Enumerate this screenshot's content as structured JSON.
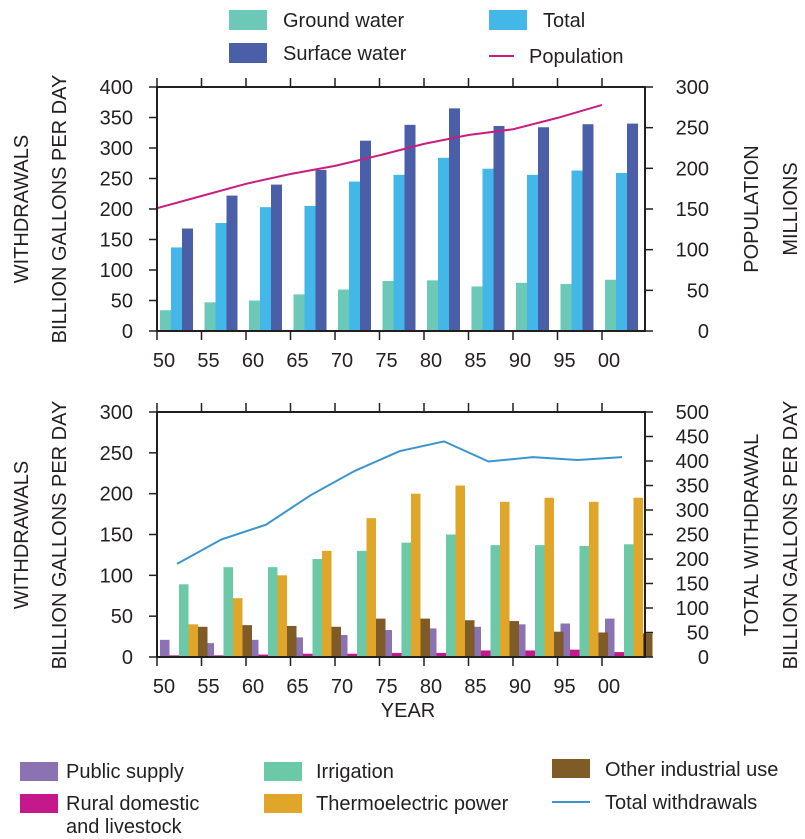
{
  "colors": {
    "ground_water": "#6cc9b8",
    "surface_water": "#4a5fa8",
    "total": "#43b7e7",
    "population": "#c91e7f",
    "public_supply": "#8b72b3",
    "rural": "#c5188a",
    "irrigation": "#6cc9a8",
    "thermoelectric": "#dfa62a",
    "other_industrial": "#7f5b27",
    "total_withdrawals": "#3a94cd",
    "axis": "#231f20"
  },
  "top_legend": {
    "ground_water": "Ground water",
    "surface_water": "Surface water",
    "total": "Total",
    "population": "Population"
  },
  "bottom_legend": {
    "public_supply": "Public supply",
    "rural_line1": "Rural domestic",
    "rural_line2": "and livestock",
    "irrigation": "Irrigation",
    "thermoelectric": "Thermoelectric power",
    "other_industrial": "Other industrial use",
    "total_withdrawals": "Total withdrawals"
  },
  "xlabel": "YEAR",
  "chart_data": [
    {
      "type": "bar",
      "categories": [
        "50",
        "55",
        "60",
        "65",
        "70",
        "75",
        "80",
        "85",
        "90",
        "95",
        "00"
      ],
      "ylabel_line1": "WITHDRAWALS",
      "ylabel_line2": "BILLION GALLONS PER DAY",
      "y2label_line1": "POPULATION",
      "y2label_line2": "MILLIONS",
      "ylim": [
        0,
        400
      ],
      "y2lim": [
        0,
        300
      ],
      "yticks": [
        "0",
        "50",
        "100",
        "150",
        "200",
        "250",
        "300",
        "350",
        "400"
      ],
      "y2ticks": [
        "0",
        "50",
        "100",
        "150",
        "200",
        "250",
        "300"
      ],
      "series": [
        {
          "name": "Ground water",
          "values": [
            34,
            47,
            50,
            60,
            68,
            82,
            83,
            73,
            79,
            77,
            84
          ]
        },
        {
          "name": "Total",
          "values": [
            137,
            177,
            203,
            205,
            245,
            256,
            284,
            266,
            256,
            263,
            259
          ]
        },
        {
          "name": "Surface water",
          "values": [
            168,
            222,
            240,
            264,
            312,
            338,
            365,
            336,
            334,
            339,
            340
          ]
        }
      ],
      "line": {
        "name": "Population",
        "values": [
          151,
          166,
          181,
          193,
          203,
          216,
          230,
          241,
          248,
          262,
          278
        ]
      }
    },
    {
      "type": "bar",
      "categories": [
        "50",
        "55",
        "60",
        "65",
        "70",
        "75",
        "80",
        "85",
        "90",
        "95",
        "00"
      ],
      "ylabel_line1": "WITHDRAWALS",
      "ylabel_line2": "BILLION GALLONS PER DAY",
      "y2label_line1": "TOTAL WITHDRAWAL",
      "y2label_line2": "BILLION GALLONS PER DAY",
      "ylim": [
        0,
        300
      ],
      "y2lim": [
        0,
        500
      ],
      "yticks": [
        "0",
        "50",
        "100",
        "150",
        "200",
        "250",
        "300"
      ],
      "y2ticks": [
        "0",
        "50",
        "100",
        "150",
        "200",
        "250",
        "300",
        "350",
        "400",
        "450",
        "500"
      ],
      "series": [
        {
          "name": "Public supply",
          "values": [
            21,
            17,
            21,
            24,
            27,
            33,
            35,
            37,
            40,
            41,
            47
          ]
        },
        {
          "name": "Rural domestic and livestock",
          "values": [
            2,
            2,
            3,
            4,
            4,
            5,
            5,
            8,
            8,
            9,
            6
          ]
        },
        {
          "name": "Irrigation",
          "values": [
            89,
            110,
            110,
            120,
            130,
            140,
            150,
            137,
            137,
            136,
            138
          ]
        },
        {
          "name": "Thermoelectric power",
          "values": [
            40,
            72,
            100,
            130,
            170,
            200,
            210,
            190,
            195,
            190,
            195
          ]
        },
        {
          "name": "Other industrial use",
          "values": [
            37,
            39,
            38,
            37,
            47,
            47,
            45,
            44,
            31,
            30,
            29
          ]
        }
      ],
      "line": {
        "name": "Total withdrawals",
        "values": [
          190,
          240,
          270,
          330,
          380,
          420,
          440,
          399,
          408,
          402,
          408
        ]
      }
    }
  ]
}
